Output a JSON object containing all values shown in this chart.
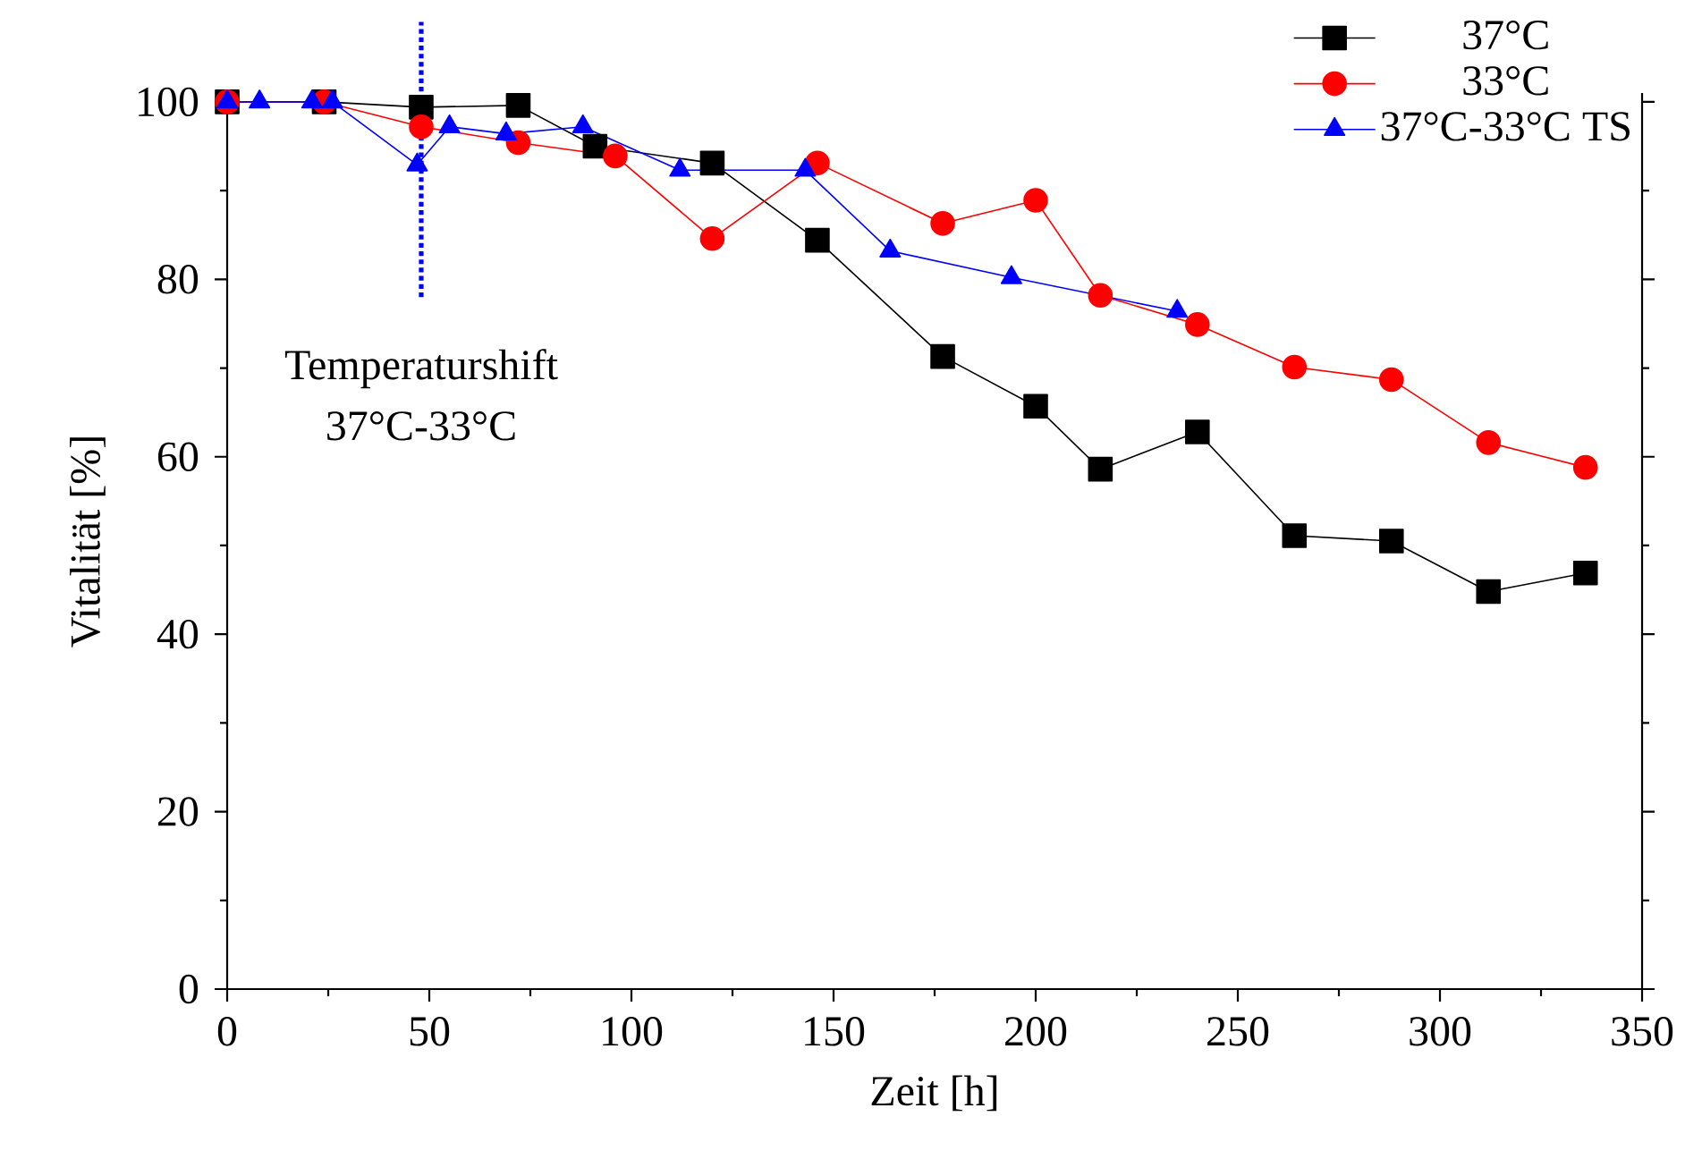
{
  "chart_data": {
    "type": "line",
    "xlabel": "Zeit [h]",
    "ylabel": "Vitalität [%]",
    "xlim": [
      0,
      350
    ],
    "xticks": [
      0,
      50,
      100,
      150,
      200,
      250,
      300,
      350
    ],
    "ylim": [
      0,
      101
    ],
    "yticks": [
      0,
      20,
      40,
      60,
      80,
      100
    ],
    "grid": false,
    "legend": "top right",
    "series": [
      {
        "name": "37°C",
        "color": "#000000",
        "marker": "square",
        "x": [
          0,
          24,
          48,
          72,
          91,
          120,
          146,
          177,
          200,
          216,
          240,
          264,
          288,
          312,
          336
        ],
        "values": [
          100,
          100,
          99.4,
          99.6,
          95,
          93.1,
          84.4,
          71.3,
          65.7,
          58.6,
          62.8,
          51.1,
          50.5,
          44.8,
          46.9
        ]
      },
      {
        "name": "33°C",
        "color": "#ff0000",
        "marker": "circle",
        "x": [
          0,
          24,
          48,
          72,
          96,
          120,
          146,
          177,
          200,
          216,
          240,
          264,
          288,
          312,
          336
        ],
        "values": [
          100,
          100,
          97.2,
          95.4,
          93.9,
          84.6,
          93.1,
          86.3,
          88.9,
          78.2,
          74.9,
          70.1,
          68.7,
          61.6,
          58.8
        ]
      },
      {
        "name": "37°C-33°C TS",
        "color": "#0000ff",
        "marker": "triangle",
        "x": [
          0,
          8,
          21,
          26,
          47,
          55,
          69,
          88,
          112,
          143,
          164,
          194,
          235
        ],
        "values": [
          100,
          100,
          100,
          100,
          92.9,
          97.2,
          96.4,
          97.2,
          92.3,
          92.3,
          83.2,
          80.2,
          76.4
        ]
      }
    ],
    "ref_lines": [
      {
        "axis": "x",
        "value": 48,
        "label": "Temperaturshift 37°C-33°C",
        "color": "#0000ff",
        "line_style": "dotted"
      }
    ]
  }
}
